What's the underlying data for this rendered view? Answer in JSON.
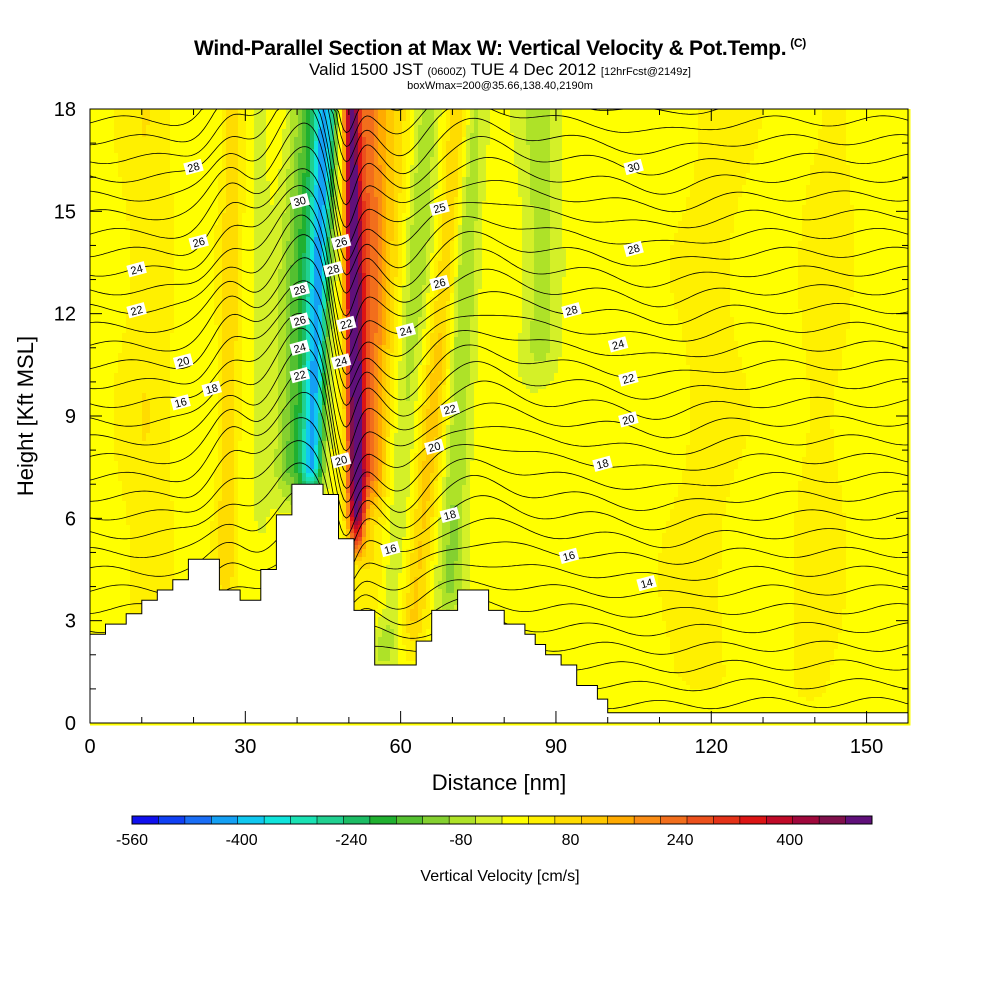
{
  "title": {
    "main": "Wind-Parallel Section at Max W: Vertical Velocity & Pot.Temp.",
    "copyright": "(C)",
    "valid_prefix": "Valid 1500 JST",
    "valid_z": "(0600Z)",
    "valid_date": "TUE 4 Dec 2012",
    "forecast": "[12hrFcst@2149z]",
    "box": "boxWmax=200@35.66,138.40,2190m"
  },
  "chart_data": {
    "type": "heatmap",
    "xlabel": "Distance [nm]",
    "ylabel": "Height [Kft MSL]",
    "xlim": [
      0,
      158
    ],
    "ylim": [
      0,
      18
    ],
    "x_ticks": [
      0,
      30,
      60,
      90,
      120,
      150
    ],
    "y_ticks": [
      0,
      3,
      6,
      9,
      12,
      15,
      18
    ],
    "x_tick_labels": [
      "0",
      "30",
      "60",
      "90",
      "120",
      "150"
    ],
    "y_tick_labels": [
      "0",
      "3",
      "6",
      "9",
      "12",
      "15",
      "18"
    ],
    "terrain": [
      [
        0,
        2.6
      ],
      [
        3,
        2.6
      ],
      [
        3,
        2.9
      ],
      [
        7,
        2.9
      ],
      [
        7,
        3.2
      ],
      [
        10,
        3.2
      ],
      [
        10,
        3.6
      ],
      [
        13,
        3.6
      ],
      [
        13,
        3.9
      ],
      [
        16,
        3.9
      ],
      [
        16,
        4.2
      ],
      [
        19,
        4.2
      ],
      [
        19,
        4.8
      ],
      [
        25,
        4.8
      ],
      [
        25,
        3.9
      ],
      [
        29,
        3.9
      ],
      [
        29,
        3.6
      ],
      [
        33,
        3.6
      ],
      [
        33,
        4.5
      ],
      [
        36,
        4.5
      ],
      [
        36,
        6.1
      ],
      [
        39,
        6.1
      ],
      [
        39,
        7.0
      ],
      [
        45,
        7.0
      ],
      [
        45,
        6.7
      ],
      [
        48,
        6.7
      ],
      [
        48,
        5.4
      ],
      [
        51,
        5.4
      ],
      [
        51,
        3.3
      ],
      [
        55,
        3.3
      ],
      [
        55,
        1.7
      ],
      [
        63,
        1.7
      ],
      [
        63,
        2.4
      ],
      [
        66,
        2.4
      ],
      [
        66,
        3.3
      ],
      [
        71,
        3.3
      ],
      [
        71,
        3.9
      ],
      [
        77,
        3.9
      ],
      [
        77,
        3.3
      ],
      [
        80,
        3.3
      ],
      [
        80,
        2.9
      ],
      [
        84,
        2.9
      ],
      [
        84,
        2.6
      ],
      [
        86,
        2.6
      ],
      [
        86,
        2.3
      ],
      [
        88,
        2.3
      ],
      [
        88,
        2.0
      ],
      [
        91,
        2.0
      ],
      [
        91,
        1.7
      ],
      [
        94,
        1.7
      ],
      [
        94,
        1.1
      ],
      [
        98,
        1.1
      ],
      [
        98,
        0.7
      ],
      [
        100,
        0.7
      ],
      [
        100,
        0.3
      ],
      [
        158,
        0.3
      ]
    ],
    "w_features": [
      {
        "x": 51,
        "halfwidth": 1.6,
        "tilt": -0.08,
        "ybot": 5.5,
        "value": 460
      },
      {
        "x": 53.5,
        "halfwidth": 3.2,
        "tilt": 0.05,
        "ybot": 6.8,
        "value": 220
      },
      {
        "x": 44,
        "halfwidth": 2.0,
        "tilt": 0.25,
        "ybot": 7.0,
        "value": -340
      },
      {
        "x": 41,
        "halfwidth": 4.0,
        "tilt": 0.3,
        "ybot": 7.0,
        "value": -180
      },
      {
        "x": 62,
        "halfwidth": 3.0,
        "tilt": 0.5,
        "ybot": 2.0,
        "value": -110
      },
      {
        "x": 72,
        "halfwidth": 2.5,
        "tilt": 0.3,
        "ybot": 3.5,
        "value": -100
      },
      {
        "x": 87,
        "halfwidth": 3.5,
        "tilt": 0.0,
        "ybot": 10.5,
        "value": -80
      },
      {
        "x": 58,
        "halfwidth": 4.5,
        "tilt": 0.2,
        "ybot": 3.0,
        "value": 80
      },
      {
        "x": 68,
        "halfwidth": 2.5,
        "tilt": 0.6,
        "ybot": 2.5,
        "value": 110
      },
      {
        "x": 27,
        "halfwidth": 2.0,
        "tilt": 0.1,
        "ybot": 4.0,
        "value": 90
      },
      {
        "x": 33,
        "halfwidth": 1.5,
        "tilt": 0.0,
        "ybot": 6.0,
        "value": -40
      },
      {
        "x": 11,
        "halfwidth": 5.0,
        "tilt": 0.0,
        "ybot": 2.5,
        "value": 50
      },
      {
        "x": 120,
        "halfwidth": 6.0,
        "tilt": 0.3,
        "ybot": 1.0,
        "value": 40
      },
      {
        "x": 142,
        "halfwidth": 5.0,
        "tilt": 0.2,
        "ybot": 0.5,
        "value": 40
      }
    ],
    "theta_labels": [
      {
        "text": "28",
        "x": 20,
        "y": 16.3
      },
      {
        "text": "26",
        "x": 21,
        "y": 14.1
      },
      {
        "text": "24",
        "x": 9,
        "y": 13.3
      },
      {
        "text": "22",
        "x": 9,
        "y": 12.1
      },
      {
        "text": "20",
        "x": 18,
        "y": 10.6
      },
      {
        "text": "18",
        "x": 23.5,
        "y": 9.8
      },
      {
        "text": "16",
        "x": 17.5,
        "y": 9.4
      },
      {
        "text": "30",
        "x": 40.5,
        "y": 15.3
      },
      {
        "text": "28",
        "x": 40.5,
        "y": 12.7
      },
      {
        "text": "26",
        "x": 40.5,
        "y": 11.8
      },
      {
        "text": "24",
        "x": 40.5,
        "y": 11.0
      },
      {
        "text": "22",
        "x": 40.5,
        "y": 10.2
      },
      {
        "text": "26",
        "x": 48.5,
        "y": 14.1
      },
      {
        "text": "28",
        "x": 47,
        "y": 13.3
      },
      {
        "text": "22",
        "x": 49.5,
        "y": 11.7
      },
      {
        "text": "24",
        "x": 48.5,
        "y": 10.6
      },
      {
        "text": "20",
        "x": 48.5,
        "y": 7.7
      },
      {
        "text": "25",
        "x": 67.5,
        "y": 15.1
      },
      {
        "text": "26",
        "x": 67.5,
        "y": 12.9
      },
      {
        "text": "24",
        "x": 61,
        "y": 11.5
      },
      {
        "text": "22",
        "x": 69.5,
        "y": 9.2
      },
      {
        "text": "20",
        "x": 66.5,
        "y": 8.1
      },
      {
        "text": "18",
        "x": 69.5,
        "y": 6.1
      },
      {
        "text": "16",
        "x": 58,
        "y": 5.1
      },
      {
        "text": "30",
        "x": 105,
        "y": 16.3
      },
      {
        "text": "28",
        "x": 105,
        "y": 13.9
      },
      {
        "text": "28",
        "x": 93,
        "y": 12.1
      },
      {
        "text": "24",
        "x": 102,
        "y": 11.1
      },
      {
        "text": "22",
        "x": 104,
        "y": 10.1
      },
      {
        "text": "20",
        "x": 104,
        "y": 8.9
      },
      {
        "text": "18",
        "x": 99,
        "y": 7.6
      },
      {
        "text": "16",
        "x": 92.5,
        "y": 4.9
      },
      {
        "text": "14",
        "x": 107.5,
        "y": 4.1
      }
    ],
    "colorbar": {
      "label": "Vertical Velocity [cm/s]",
      "min": -560,
      "max": 520,
      "step": 40,
      "tick_values": [
        -560,
        -400,
        -240,
        -80,
        80,
        240,
        400
      ],
      "tick_labels": [
        "-560",
        "-400",
        "-240",
        "-80",
        "80",
        "240",
        "400"
      ],
      "colors": [
        "#1010ee",
        "#1040f4",
        "#1a6ef6",
        "#14a0f4",
        "#10c8f0",
        "#10e4dc",
        "#1ae2b4",
        "#20d090",
        "#1cbc64",
        "#20b030",
        "#54c030",
        "#84d030",
        "#aee228",
        "#d4f028",
        "#ffff00",
        "#fff000",
        "#ffdc00",
        "#ffc800",
        "#ffaa00",
        "#fa8c14",
        "#f26e1c",
        "#ec501c",
        "#e43218",
        "#dc1414",
        "#c00a28",
        "#a0083c",
        "#80104c",
        "#60107a"
      ]
    }
  }
}
